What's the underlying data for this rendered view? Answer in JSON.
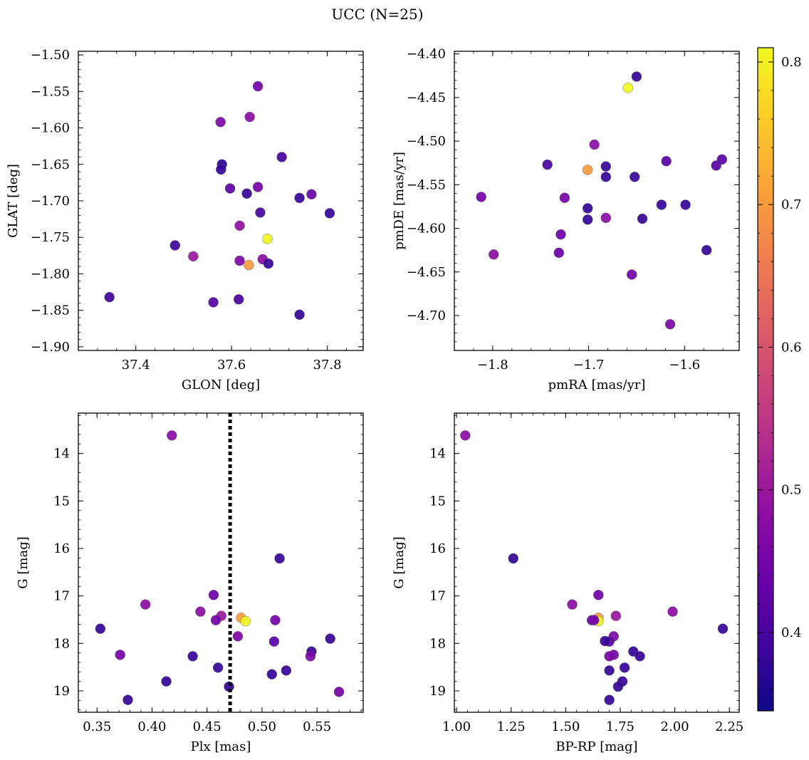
{
  "title": "UCC (N=25)",
  "colorbar": {
    "min": 0.345,
    "max": 0.81,
    "ticks": [
      0.4,
      0.5,
      0.6,
      0.7,
      0.8
    ],
    "tick_labels": [
      "0.4",
      "0.5",
      "0.6",
      "0.7",
      "0.8"
    ],
    "colormap": "plasma"
  },
  "chart_data": [
    {
      "type": "scatter",
      "xlabel": "GLON [deg]",
      "ylabel": "GLAT [deg]",
      "xlim": [
        37.28,
        37.875
      ],
      "ylim": [
        -1.905,
        -1.495
      ],
      "xticks": [
        37.4,
        37.6,
        37.8
      ],
      "xtick_labels": [
        "37.4",
        "37.6",
        "37.8"
      ],
      "yticks": [
        -1.5,
        -1.55,
        -1.6,
        -1.65,
        -1.7,
        -1.75,
        -1.8,
        -1.85,
        -1.9
      ],
      "ytick_labels": [
        "−1.50",
        "−1.55",
        "−1.60",
        "−1.65",
        "−1.70",
        "−1.75",
        "−1.80",
        "−1.85",
        "−1.90"
      ],
      "invert_y": false,
      "points": [
        {
          "x": 37.655,
          "y": -1.543,
          "c": 0.45
        },
        {
          "x": 37.638,
          "y": -1.585,
          "c": 0.48
        },
        {
          "x": 37.577,
          "y": -1.592,
          "c": 0.46
        },
        {
          "x": 37.58,
          "y": -1.65,
          "c": 0.37
        },
        {
          "x": 37.578,
          "y": -1.657,
          "c": 0.38
        },
        {
          "x": 37.705,
          "y": -1.64,
          "c": 0.4
        },
        {
          "x": 37.597,
          "y": -1.683,
          "c": 0.42
        },
        {
          "x": 37.632,
          "y": -1.69,
          "c": 0.38
        },
        {
          "x": 37.655,
          "y": -1.681,
          "c": 0.45
        },
        {
          "x": 37.742,
          "y": -1.696,
          "c": 0.38
        },
        {
          "x": 37.767,
          "y": -1.691,
          "c": 0.44
        },
        {
          "x": 37.66,
          "y": -1.716,
          "c": 0.4
        },
        {
          "x": 37.805,
          "y": -1.717,
          "c": 0.38
        },
        {
          "x": 37.617,
          "y": -1.734,
          "c": 0.49
        },
        {
          "x": 37.675,
          "y": -1.752,
          "c": 0.81
        },
        {
          "x": 37.482,
          "y": -1.761,
          "c": 0.39
        },
        {
          "x": 37.52,
          "y": -1.776,
          "c": 0.5
        },
        {
          "x": 37.617,
          "y": -1.782,
          "c": 0.46
        },
        {
          "x": 37.665,
          "y": -1.78,
          "c": 0.48
        },
        {
          "x": 37.636,
          "y": -1.788,
          "c": 0.7
        },
        {
          "x": 37.677,
          "y": -1.786,
          "c": 0.38
        },
        {
          "x": 37.345,
          "y": -1.832,
          "c": 0.39
        },
        {
          "x": 37.562,
          "y": -1.839,
          "c": 0.42
        },
        {
          "x": 37.615,
          "y": -1.835,
          "c": 0.4
        },
        {
          "x": 37.742,
          "y": -1.856,
          "c": 0.38
        }
      ]
    },
    {
      "type": "scatter",
      "xlabel": "pmRA [mas/yr]",
      "ylabel": "pmDE [mas/yr]",
      "xlim": [
        -1.84,
        -1.543
      ],
      "ylim": [
        -4.74,
        -4.397
      ],
      "xticks": [
        -1.8,
        -1.7,
        -1.6
      ],
      "xtick_labels": [
        "−1.8",
        "−1.7",
        "−1.6"
      ],
      "yticks": [
        -4.4,
        -4.45,
        -4.5,
        -4.55,
        -4.6,
        -4.65,
        -4.7
      ],
      "ytick_labels": [
        "−4.40",
        "−4.45",
        "−4.50",
        "−4.55",
        "−4.60",
        "−4.65",
        "−4.70"
      ],
      "invert_y": false,
      "points": [
        {
          "x": -1.65,
          "y": -4.426,
          "c": 0.38
        },
        {
          "x": -1.659,
          "y": -4.439,
          "c": 0.81
        },
        {
          "x": -1.694,
          "y": -4.504,
          "c": 0.48
        },
        {
          "x": -1.743,
          "y": -4.527,
          "c": 0.4
        },
        {
          "x": -1.701,
          "y": -4.533,
          "c": 0.7
        },
        {
          "x": -1.682,
          "y": -4.529,
          "c": 0.38
        },
        {
          "x": -1.682,
          "y": -4.541,
          "c": 0.38
        },
        {
          "x": -1.652,
          "y": -4.541,
          "c": 0.38
        },
        {
          "x": -1.619,
          "y": -4.523,
          "c": 0.42
        },
        {
          "x": -1.567,
          "y": -4.528,
          "c": 0.42
        },
        {
          "x": -1.561,
          "y": -4.521,
          "c": 0.42
        },
        {
          "x": -1.812,
          "y": -4.564,
          "c": 0.45
        },
        {
          "x": -1.725,
          "y": -4.565,
          "c": 0.45
        },
        {
          "x": -1.701,
          "y": -4.577,
          "c": 0.38
        },
        {
          "x": -1.624,
          "y": -4.573,
          "c": 0.38
        },
        {
          "x": -1.599,
          "y": -4.573,
          "c": 0.38
        },
        {
          "x": -1.701,
          "y": -4.59,
          "c": 0.38
        },
        {
          "x": -1.682,
          "y": -4.588,
          "c": 0.48
        },
        {
          "x": -1.644,
          "y": -4.589,
          "c": 0.38
        },
        {
          "x": -1.729,
          "y": -4.607,
          "c": 0.44
        },
        {
          "x": -1.799,
          "y": -4.63,
          "c": 0.48
        },
        {
          "x": -1.731,
          "y": -4.628,
          "c": 0.44
        },
        {
          "x": -1.577,
          "y": -4.625,
          "c": 0.38
        },
        {
          "x": -1.655,
          "y": -4.653,
          "c": 0.45
        },
        {
          "x": -1.615,
          "y": -4.71,
          "c": 0.46
        }
      ]
    },
    {
      "type": "scatter",
      "xlabel": "Plx [mas]",
      "ylabel": "G [mag]",
      "xlim": [
        0.333,
        0.592
      ],
      "ylim": [
        19.45,
        13.15
      ],
      "xticks": [
        0.35,
        0.4,
        0.45,
        0.5,
        0.55
      ],
      "xtick_labels": [
        "0.35",
        "0.40",
        "0.45",
        "0.50",
        "0.55"
      ],
      "yticks": [
        14,
        15,
        16,
        17,
        18,
        19
      ],
      "ytick_labels": [
        "14",
        "15",
        "16",
        "17",
        "18",
        "19"
      ],
      "invert_y": true,
      "vline": 0.471,
      "points": [
        {
          "x": 0.418,
          "y": 13.62,
          "c": 0.48
        },
        {
          "x": 0.516,
          "y": 16.21,
          "c": 0.38
        },
        {
          "x": 0.456,
          "y": 16.98,
          "c": 0.44
        },
        {
          "x": 0.394,
          "y": 17.18,
          "c": 0.48
        },
        {
          "x": 0.444,
          "y": 17.33,
          "c": 0.48
        },
        {
          "x": 0.463,
          "y": 17.42,
          "c": 0.5
        },
        {
          "x": 0.481,
          "y": 17.46,
          "c": 0.7
        },
        {
          "x": 0.485,
          "y": 17.53,
          "c": 0.81
        },
        {
          "x": 0.458,
          "y": 17.51,
          "c": 0.45
        },
        {
          "x": 0.512,
          "y": 17.51,
          "c": 0.45
        },
        {
          "x": 0.353,
          "y": 17.69,
          "c": 0.38
        },
        {
          "x": 0.478,
          "y": 17.85,
          "c": 0.46
        },
        {
          "x": 0.511,
          "y": 17.96,
          "c": 0.42
        },
        {
          "x": 0.562,
          "y": 17.9,
          "c": 0.38
        },
        {
          "x": 0.545,
          "y": 18.17,
          "c": 0.38
        },
        {
          "x": 0.371,
          "y": 18.24,
          "c": 0.45
        },
        {
          "x": 0.437,
          "y": 18.27,
          "c": 0.38
        },
        {
          "x": 0.544,
          "y": 18.27,
          "c": 0.46
        },
        {
          "x": 0.46,
          "y": 18.51,
          "c": 0.38
        },
        {
          "x": 0.522,
          "y": 18.57,
          "c": 0.38
        },
        {
          "x": 0.509,
          "y": 18.65,
          "c": 0.38
        },
        {
          "x": 0.413,
          "y": 18.8,
          "c": 0.38
        },
        {
          "x": 0.47,
          "y": 18.91,
          "c": 0.38
        },
        {
          "x": 0.57,
          "y": 19.02,
          "c": 0.45
        },
        {
          "x": 0.378,
          "y": 19.19,
          "c": 0.38
        }
      ]
    },
    {
      "type": "scatter",
      "xlabel": "BP-RP [mag]",
      "ylabel": "G [mag]",
      "xlim": [
        0.99,
        2.295
      ],
      "ylim": [
        19.45,
        13.15
      ],
      "xticks": [
        1.0,
        1.25,
        1.5,
        1.75,
        2.0,
        2.25
      ],
      "xtick_labels": [
        "1.00",
        "1.25",
        "1.50",
        "1.75",
        "2.00",
        "2.25"
      ],
      "yticks": [
        14,
        15,
        16,
        17,
        18,
        19
      ],
      "ytick_labels": [
        "14",
        "15",
        "16",
        "17",
        "18",
        "19"
      ],
      "invert_y": true,
      "points": [
        {
          "x": 1.04,
          "y": 13.62,
          "c": 0.48
        },
        {
          "x": 1.26,
          "y": 16.21,
          "c": 0.38
        },
        {
          "x": 1.65,
          "y": 16.98,
          "c": 0.44
        },
        {
          "x": 1.53,
          "y": 17.18,
          "c": 0.48
        },
        {
          "x": 1.99,
          "y": 17.33,
          "c": 0.48
        },
        {
          "x": 1.73,
          "y": 17.42,
          "c": 0.5
        },
        {
          "x": 1.65,
          "y": 17.46,
          "c": 0.7
        },
        {
          "x": 1.65,
          "y": 17.53,
          "c": 0.81
        },
        {
          "x": 1.62,
          "y": 17.51,
          "c": 0.45
        },
        {
          "x": 1.63,
          "y": 17.51,
          "c": 0.45
        },
        {
          "x": 2.22,
          "y": 17.69,
          "c": 0.38
        },
        {
          "x": 1.72,
          "y": 17.85,
          "c": 0.46
        },
        {
          "x": 1.7,
          "y": 17.96,
          "c": 0.42
        },
        {
          "x": 1.68,
          "y": 17.95,
          "c": 0.38
        },
        {
          "x": 1.81,
          "y": 18.17,
          "c": 0.38
        },
        {
          "x": 1.72,
          "y": 18.24,
          "c": 0.45
        },
        {
          "x": 1.84,
          "y": 18.27,
          "c": 0.38
        },
        {
          "x": 1.7,
          "y": 18.27,
          "c": 0.46
        },
        {
          "x": 1.77,
          "y": 18.51,
          "c": 0.38
        },
        {
          "x": 1.7,
          "y": 18.57,
          "c": 0.38
        },
        {
          "x": 1.76,
          "y": 18.8,
          "c": 0.38
        },
        {
          "x": 1.74,
          "y": 18.91,
          "c": 0.38
        },
        {
          "x": 1.7,
          "y": 19.19,
          "c": 0.38
        }
      ]
    }
  ]
}
